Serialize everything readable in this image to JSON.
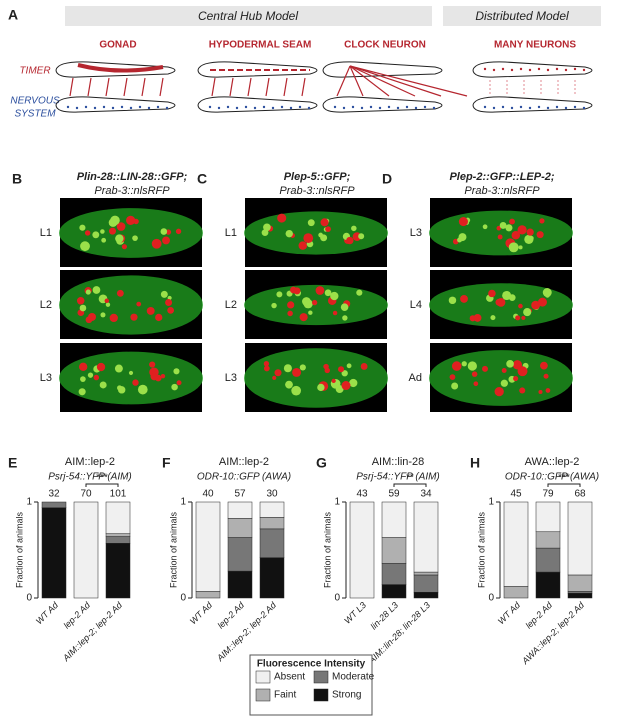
{
  "panel_a": {
    "label": "A",
    "central_hub": "Central Hub Model",
    "distributed": "Distributed Model",
    "columns": [
      "GONAD",
      "HYPODERMAL SEAM",
      "CLOCK NEURON",
      "MANY NEURONS"
    ],
    "timer": "TIMER",
    "nervous_system": [
      "NERVOUS",
      "SYSTEM"
    ]
  },
  "image_panels": [
    {
      "label": "B",
      "title": "Plin-28::LIN-28::GFP;",
      "subtitle": "Prab-3::nlsRFP",
      "stages": [
        "L1",
        "L2",
        "L3"
      ]
    },
    {
      "label": "C",
      "title": "Plep-5::GFP;",
      "subtitle": "Prab-3::nlsRFP",
      "stages": [
        "L1",
        "L2",
        "L3"
      ]
    },
    {
      "label": "D",
      "title": "Plep-2::GFP::LEP-2;",
      "subtitle": "Prab-3::nlsRFP",
      "stages": [
        "L3",
        "L4",
        "Ad"
      ]
    }
  ],
  "legend": {
    "title": "Fluorescence Intensity"
  },
  "chart_data": [
    {
      "type": "bar",
      "stacked": true,
      "label": "E",
      "title": "AIM::lep-2",
      "subtitle": "Psrj-54::YFP (AIM)",
      "ylabel": "Fraction of animals",
      "categories": [
        "WT Ad",
        "lep-2 Ad",
        "AIM::lep-2; lep-2 Ad"
      ],
      "counts": [
        32,
        70,
        101
      ],
      "annotation": "***",
      "ylim": [
        0,
        1
      ],
      "yticks": [
        0,
        1
      ],
      "series": [
        {
          "name": "Strong",
          "color": "#111111",
          "values": [
            0.94,
            0,
            0.57
          ]
        },
        {
          "name": "Moderate",
          "color": "#777777",
          "values": [
            0.06,
            0,
            0.07
          ]
        },
        {
          "name": "Faint",
          "color": "#b0b0b0",
          "values": [
            0,
            0,
            0.03
          ]
        },
        {
          "name": "Absent",
          "color": "#f0f0f0",
          "values": [
            0,
            1,
            0.33
          ]
        }
      ]
    },
    {
      "type": "bar",
      "stacked": true,
      "label": "F",
      "title": "AIM::lep-2",
      "subtitle": "ODR-10::GFP (AWA)",
      "ylabel": "Fraction of animals",
      "categories": [
        "WT Ad",
        "lep-2 Ad",
        "AIM::lep-2; lep-2 Ad"
      ],
      "counts": [
        40,
        57,
        30
      ],
      "ylim": [
        0,
        1
      ],
      "yticks": [
        0,
        1
      ],
      "series": [
        {
          "name": "Strong",
          "color": "#111111",
          "values": [
            0,
            0.28,
            0.42
          ]
        },
        {
          "name": "Moderate",
          "color": "#777777",
          "values": [
            0,
            0.35,
            0.3
          ]
        },
        {
          "name": "Faint",
          "color": "#b0b0b0",
          "values": [
            0.07,
            0.2,
            0.12
          ]
        },
        {
          "name": "Absent",
          "color": "#f0f0f0",
          "values": [
            0.93,
            0.17,
            0.16
          ]
        }
      ]
    },
    {
      "type": "bar",
      "stacked": true,
      "label": "G",
      "title": "AIM::lin-28",
      "subtitle": "Psrj-54::YFP (AIM)",
      "ylabel": "Fraction of animals",
      "categories": [
        "WT L3",
        "lin-28 L3",
        "AIM::lin-28; lin-28 L3"
      ],
      "counts": [
        43,
        59,
        34
      ],
      "annotation": "**",
      "ylim": [
        0,
        1
      ],
      "yticks": [
        0,
        1
      ],
      "series": [
        {
          "name": "Strong",
          "color": "#111111",
          "values": [
            0,
            0.14,
            0.06
          ]
        },
        {
          "name": "Moderate",
          "color": "#777777",
          "values": [
            0,
            0.22,
            0.18
          ]
        },
        {
          "name": "Faint",
          "color": "#b0b0b0",
          "values": [
            0,
            0.27,
            0.03
          ]
        },
        {
          "name": "Absent",
          "color": "#f0f0f0",
          "values": [
            1,
            0.37,
            0.73
          ]
        }
      ]
    },
    {
      "type": "bar",
      "stacked": true,
      "label": "H",
      "title": "AWA::lep-2",
      "subtitle": "ODR-10::GFP (AWA)",
      "ylabel": "Fraction of animals",
      "categories": [
        "WT Ad",
        "lep-2 Ad",
        "AWA::lep-2; lep-2 Ad"
      ],
      "counts": [
        45,
        79,
        68
      ],
      "annotation": "***",
      "ylim": [
        0,
        1
      ],
      "yticks": [
        0,
        1
      ],
      "series": [
        {
          "name": "Strong",
          "color": "#111111",
          "values": [
            0,
            0.27,
            0.05
          ]
        },
        {
          "name": "Moderate",
          "color": "#777777",
          "values": [
            0,
            0.25,
            0.02
          ]
        },
        {
          "name": "Faint",
          "color": "#b0b0b0",
          "values": [
            0.12,
            0.17,
            0.17
          ]
        },
        {
          "name": "Absent",
          "color": "#f0f0f0",
          "values": [
            0.88,
            0.31,
            0.76
          ]
        }
      ]
    }
  ]
}
